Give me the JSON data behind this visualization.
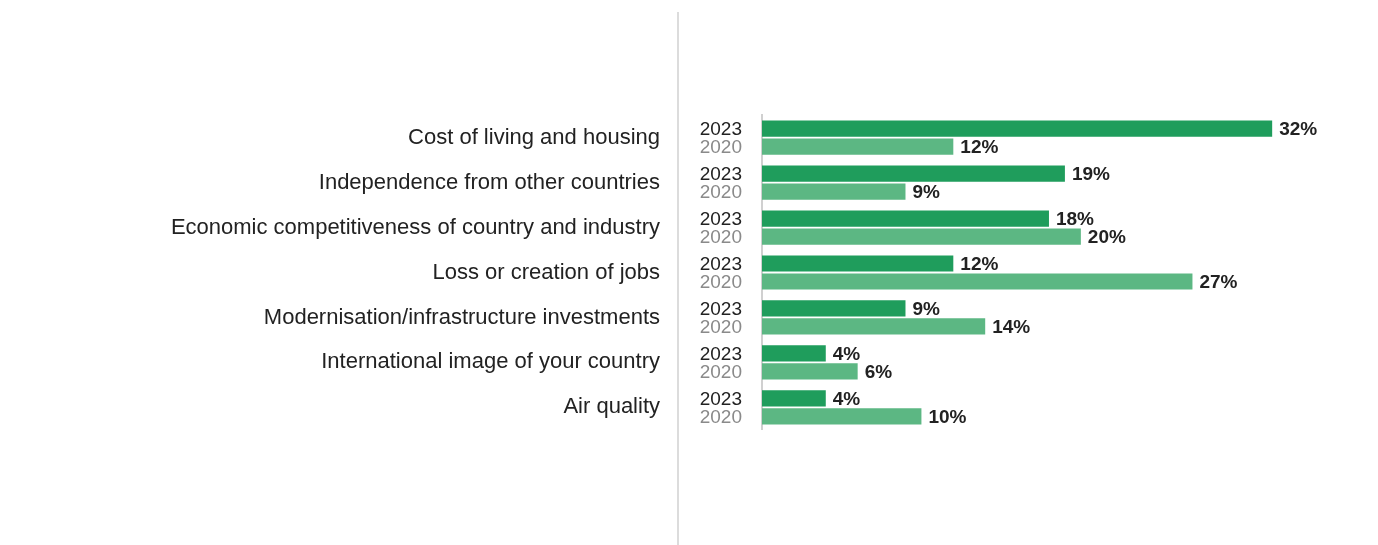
{
  "chart_data": {
    "type": "bar",
    "orientation": "horizontal",
    "categories": [
      "Cost of living and housing",
      "Independence from other countries",
      "Economic competitiveness of country and industry",
      "Loss or creation of jobs",
      "Modernisation/infrastructure investments",
      "International image of your country",
      "Air quality"
    ],
    "series": [
      {
        "name": "2023",
        "color": "#1f9d5c",
        "values": [
          32,
          19,
          18,
          12,
          9,
          4,
          4
        ],
        "value_labels": [
          "32%",
          "19%",
          "18%",
          "12%",
          "9%",
          "4%",
          "4%"
        ]
      },
      {
        "name": "2020",
        "color": "#5cb783",
        "values": [
          12,
          9,
          20,
          27,
          14,
          6,
          10
        ],
        "value_labels": [
          "12%",
          "9%",
          "20%",
          "27%",
          "14%",
          "6%",
          "10%"
        ]
      }
    ],
    "grid": false,
    "legend": false,
    "tick_labels": "y"
  }
}
